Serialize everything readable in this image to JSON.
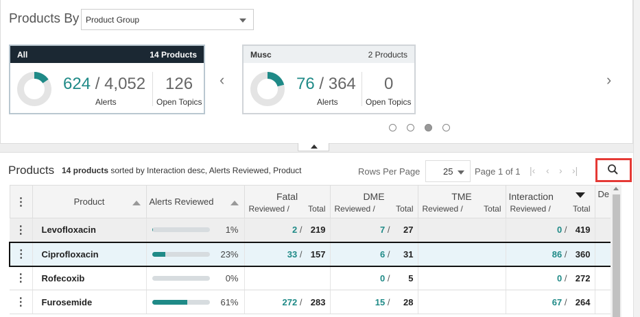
{
  "header": {
    "title": "Products By",
    "group_select": "Product Group"
  },
  "cards": [
    {
      "name": "All",
      "count_label": "14 Products",
      "alerts_reviewed": "624",
      "alerts_total": "4,052",
      "alerts_label": "Alerts",
      "open_topics": "126",
      "open_topics_label": "Open Topics",
      "fraction": 0.154
    },
    {
      "name": "Musc",
      "count_label": "2 Products",
      "alerts_reviewed": "76",
      "alerts_total": "364",
      "alerts_label": "Alerts",
      "open_topics": "0",
      "open_topics_label": "Open Topics",
      "fraction": 0.209
    }
  ],
  "carousel": {
    "prev_icon": "chevron-left-icon",
    "next_icon": "chevron-right-icon",
    "dots": 4,
    "active_dot": 3
  },
  "grid_header": {
    "title": "Products",
    "count_text": "14 products",
    "sort_text": "sorted by Interaction desc, Alerts Reviewed, Product",
    "rows_per_page_label": "Rows Per Page",
    "rows_per_page": "25",
    "page_text": "Page 1 of 1"
  },
  "columns": {
    "product": "Product",
    "alerts_reviewed": "Alerts Reviewed",
    "fatal": "Fatal",
    "dme": "DME",
    "tme": "TME",
    "interaction": "Interaction",
    "de": "De",
    "reviewed": "Reviewed /",
    "total": "Total"
  },
  "rows": [
    {
      "product": "Levofloxacin",
      "pct": "1%",
      "pct_value": 0.01,
      "fatal_rev": "2",
      "fatal_tot": "219",
      "dme_rev": "7",
      "dme_tot": "27",
      "tme_rev": "",
      "tme_tot": "",
      "int_rev": "0",
      "int_tot": "419"
    },
    {
      "product": "Ciprofloxacin",
      "pct": "23%",
      "pct_value": 0.23,
      "fatal_rev": "33",
      "fatal_tot": "157",
      "dme_rev": "6",
      "dme_tot": "31",
      "tme_rev": "",
      "tme_tot": "",
      "int_rev": "86",
      "int_tot": "360"
    },
    {
      "product": "Rofecoxib",
      "pct": "0%",
      "pct_value": 0.0,
      "fatal_rev": "",
      "fatal_tot": "",
      "dme_rev": "0",
      "dme_tot": "5",
      "tme_rev": "",
      "tme_tot": "",
      "int_rev": "0",
      "int_tot": "272"
    },
    {
      "product": "Furosemide",
      "pct": "61%",
      "pct_value": 0.61,
      "fatal_rev": "272",
      "fatal_tot": "283",
      "dme_rev": "15",
      "dme_tot": "28",
      "tme_rev": "",
      "tme_tot": "",
      "int_rev": "67",
      "int_tot": "264"
    }
  ],
  "colors": {
    "accent": "#1f8a87",
    "header_dark": "#1b2833",
    "highlight": "#e53935"
  }
}
